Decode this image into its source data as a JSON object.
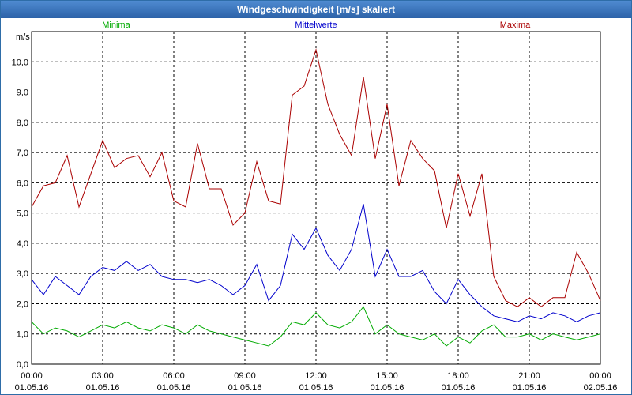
{
  "window": {
    "title": "Windgeschwindigkeit [m/s] skaliert"
  },
  "chart_data": {
    "type": "line",
    "title": "Windgeschwindigkeit [m/s] skaliert",
    "ylabel": "m/s",
    "xlabel": "",
    "ylim": [
      0,
      11
    ],
    "ytick_labels": [
      "0,0",
      "1,0",
      "2,0",
      "3,0",
      "4,0",
      "5,0",
      "6,0",
      "7,0",
      "8,0",
      "9,0",
      "10,0"
    ],
    "xticks": [
      {
        "time": "00:00",
        "date": "01.05.16"
      },
      {
        "time": "03:00",
        "date": "01.05.16"
      },
      {
        "time": "06:00",
        "date": "01.05.16"
      },
      {
        "time": "09:00",
        "date": "01.05.16"
      },
      {
        "time": "12:00",
        "date": "01.05.16"
      },
      {
        "time": "15:00",
        "date": "01.05.16"
      },
      {
        "time": "18:00",
        "date": "01.05.16"
      },
      {
        "time": "21:00",
        "date": "01.05.16"
      },
      {
        "time": "00:00",
        "date": "02.05.16"
      }
    ],
    "x_hours": [
      0,
      0.5,
      1,
      1.5,
      2,
      2.5,
      3,
      3.5,
      4,
      4.5,
      5,
      5.5,
      6,
      6.5,
      7,
      7.5,
      8,
      8.5,
      9,
      9.5,
      10,
      10.5,
      11,
      11.5,
      12,
      12.5,
      13,
      13.5,
      14,
      14.5,
      15,
      15.5,
      16,
      16.5,
      17,
      17.5,
      18,
      18.5,
      19,
      19.5,
      20,
      20.5,
      21,
      21.5,
      22,
      22.5,
      23,
      23.5,
      24
    ],
    "grid": true,
    "series": [
      {
        "name": "Minima",
        "color": "#00aa00",
        "values": [
          1.4,
          1.0,
          1.2,
          1.1,
          0.9,
          1.1,
          1.3,
          1.2,
          1.4,
          1.2,
          1.1,
          1.3,
          1.2,
          1.0,
          1.3,
          1.1,
          1.0,
          0.9,
          0.8,
          0.7,
          0.6,
          0.9,
          1.4,
          1.3,
          1.7,
          1.3,
          1.2,
          1.4,
          1.9,
          1.0,
          1.3,
          1.0,
          0.9,
          0.8,
          1.0,
          0.6,
          0.9,
          0.7,
          1.1,
          1.3,
          0.9,
          0.9,
          1.0,
          0.8,
          1.0,
          0.9,
          0.8,
          0.9,
          1.0
        ]
      },
      {
        "name": "Mittelwerte",
        "color": "#0000cc",
        "values": [
          2.8,
          2.3,
          2.9,
          2.6,
          2.3,
          2.9,
          3.2,
          3.1,
          3.4,
          3.1,
          3.3,
          2.9,
          2.8,
          2.8,
          2.7,
          2.8,
          2.6,
          2.3,
          2.6,
          3.3,
          2.1,
          2.6,
          4.3,
          3.8,
          4.5,
          3.6,
          3.1,
          3.8,
          5.3,
          2.9,
          3.8,
          2.9,
          2.9,
          3.1,
          2.4,
          2.0,
          2.8,
          2.3,
          1.9,
          1.6,
          1.5,
          1.4,
          1.6,
          1.5,
          1.7,
          1.6,
          1.4,
          1.6,
          1.7
        ]
      },
      {
        "name": "Maxima",
        "color": "#aa0000",
        "values": [
          5.2,
          5.9,
          6.0,
          6.9,
          5.2,
          6.3,
          7.4,
          6.5,
          6.8,
          6.9,
          6.2,
          7.0,
          5.4,
          5.2,
          7.3,
          5.8,
          5.8,
          4.6,
          5.0,
          6.7,
          5.4,
          5.3,
          8.9,
          9.2,
          10.4,
          8.6,
          7.6,
          6.9,
          9.5,
          6.8,
          8.6,
          5.9,
          7.4,
          6.8,
          6.4,
          4.5,
          6.3,
          4.9,
          6.3,
          2.9,
          2.1,
          1.9,
          2.2,
          1.9,
          2.2,
          2.2,
          3.7,
          3.0,
          2.1
        ]
      }
    ]
  }
}
